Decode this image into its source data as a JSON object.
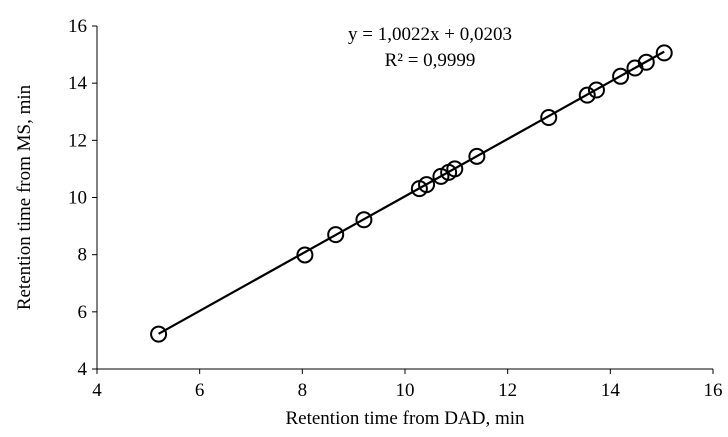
{
  "chart_data": {
    "type": "scatter",
    "title": "",
    "xlabel": "Retention time from DAD, min",
    "ylabel": "Retention time from MS, min",
    "xlim": [
      4,
      16
    ],
    "ylim": [
      4,
      16
    ],
    "xticks": [
      4,
      6,
      8,
      10,
      12,
      14,
      16
    ],
    "yticks": [
      4,
      6,
      8,
      10,
      12,
      14,
      16
    ],
    "xtick_labels": [
      "4",
      "6",
      "8",
      "10",
      "12",
      "14",
      "16"
    ],
    "ytick_labels": [
      "4",
      "6",
      "8",
      "10",
      "12",
      "14",
      "16"
    ],
    "grid": false,
    "legend": "none",
    "marker": "open-circle",
    "points": [
      {
        "x": 5.2,
        "y": 5.22
      },
      {
        "x": 8.05,
        "y": 7.99
      },
      {
        "x": 8.65,
        "y": 8.7
      },
      {
        "x": 9.2,
        "y": 9.22
      },
      {
        "x": 10.28,
        "y": 10.31
      },
      {
        "x": 10.42,
        "y": 10.45
      },
      {
        "x": 10.7,
        "y": 10.74
      },
      {
        "x": 10.85,
        "y": 10.88
      },
      {
        "x": 10.97,
        "y": 11.0
      },
      {
        "x": 11.4,
        "y": 11.44
      },
      {
        "x": 12.8,
        "y": 12.8
      },
      {
        "x": 13.55,
        "y": 13.58
      },
      {
        "x": 13.73,
        "y": 13.76
      },
      {
        "x": 14.2,
        "y": 14.24
      },
      {
        "x": 14.48,
        "y": 14.53
      },
      {
        "x": 14.7,
        "y": 14.73
      },
      {
        "x": 15.05,
        "y": 15.06
      }
    ],
    "trendline": {
      "slope": 1.0022,
      "intercept": 0.0203,
      "x_range": [
        5.2,
        15.05
      ]
    },
    "annotations": {
      "equation": "y = 1,0022x + 0,0203",
      "r_squared": "R² = 0,9999"
    }
  }
}
